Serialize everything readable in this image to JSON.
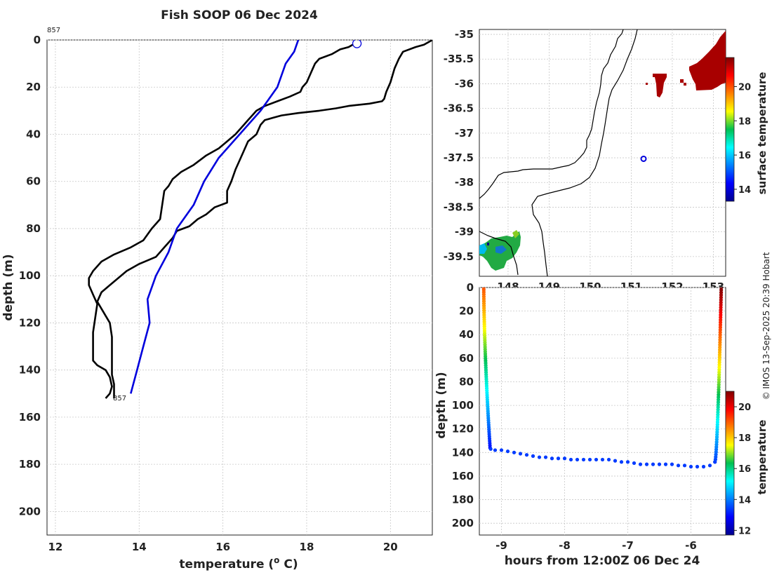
{
  "title": "Fish SOOP 06 Dec 2024",
  "credit": "© IMOS 13-Sep-2025 20:39 Hobart",
  "chart_data": [
    {
      "type": "line",
      "id": "profile",
      "xlabel": "temperature (",
      "xlabel_sup": "o",
      "xlabel_end": " C)",
      "ylabel": "depth (m)",
      "xlim": [
        11.8,
        21.0
      ],
      "ylim": [
        210,
        0
      ],
      "xticks": [
        12,
        14,
        16,
        18,
        20
      ],
      "yticks": [
        0,
        20,
        40,
        60,
        80,
        100,
        120,
        140,
        160,
        180,
        200
      ],
      "profile_id_top": "857",
      "profile_id_bottom": "857",
      "series": [
        {
          "color": "#000000",
          "points": [
            [
              21.0,
              0
            ],
            [
              20.8,
              2
            ],
            [
              20.6,
              3
            ],
            [
              20.3,
              5
            ],
            [
              20.2,
              8
            ],
            [
              20.1,
              12
            ],
            [
              20.0,
              18
            ],
            [
              19.9,
              22
            ],
            [
              19.85,
              25
            ],
            [
              19.8,
              26
            ],
            [
              19.5,
              27
            ],
            [
              19.0,
              28
            ],
            [
              18.7,
              29
            ],
            [
              18.3,
              30
            ],
            [
              17.8,
              31
            ],
            [
              17.4,
              32
            ],
            [
              17.2,
              33
            ],
            [
              17.0,
              34
            ],
            [
              16.9,
              36
            ],
            [
              16.8,
              40
            ],
            [
              16.6,
              43
            ],
            [
              16.5,
              47
            ],
            [
              16.4,
              51
            ],
            [
              16.3,
              55
            ],
            [
              16.2,
              60
            ],
            [
              16.1,
              64
            ],
            [
              16.1,
              69
            ],
            [
              15.8,
              71
            ],
            [
              15.6,
              74
            ],
            [
              15.4,
              76
            ],
            [
              15.2,
              79
            ],
            [
              14.9,
              81
            ],
            [
              14.8,
              84
            ],
            [
              14.6,
              88
            ],
            [
              14.4,
              92
            ],
            [
              14.0,
              95
            ],
            [
              13.7,
              98
            ],
            [
              13.5,
              101
            ],
            [
              13.3,
              104
            ],
            [
              13.1,
              107
            ],
            [
              13.0,
              111
            ],
            [
              13.1,
              114
            ],
            [
              13.2,
              117
            ],
            [
              13.3,
              120
            ],
            [
              13.35,
              126
            ],
            [
              13.35,
              134
            ],
            [
              13.35,
              142
            ],
            [
              13.4,
              146
            ],
            [
              13.4,
              150
            ],
            [
              13.4,
              152
            ]
          ]
        },
        {
          "color": "#000000",
          "points": [
            [
              19.1,
              2
            ],
            [
              19.0,
              3
            ],
            [
              18.8,
              4
            ],
            [
              18.6,
              6
            ],
            [
              18.3,
              8
            ],
            [
              18.2,
              10
            ],
            [
              18.15,
              12
            ],
            [
              18.1,
              14
            ],
            [
              18.0,
              18
            ],
            [
              17.9,
              20
            ],
            [
              17.85,
              22
            ],
            [
              17.6,
              24
            ],
            [
              17.3,
              26
            ],
            [
              17.0,
              28
            ],
            [
              16.8,
              30
            ],
            [
              16.7,
              32
            ],
            [
              16.6,
              34
            ],
            [
              16.5,
              36
            ],
            [
              16.3,
              40
            ],
            [
              16.1,
              43
            ],
            [
              15.9,
              46
            ],
            [
              15.6,
              49
            ],
            [
              15.3,
              53
            ],
            [
              15.0,
              56
            ],
            [
              14.8,
              59
            ],
            [
              14.7,
              62
            ],
            [
              14.6,
              64
            ],
            [
              14.55,
              70
            ],
            [
              14.5,
              76
            ],
            [
              14.3,
              80
            ],
            [
              14.1,
              85
            ],
            [
              13.8,
              88
            ],
            [
              13.4,
              91
            ],
            [
              13.1,
              94
            ],
            [
              12.9,
              98
            ],
            [
              12.8,
              101
            ],
            [
              12.8,
              104
            ],
            [
              12.9,
              108
            ],
            [
              13.0,
              112
            ],
            [
              12.95,
              118
            ],
            [
              12.9,
              124
            ],
            [
              12.9,
              130
            ],
            [
              12.9,
              136
            ],
            [
              13.0,
              138
            ],
            [
              13.2,
              140
            ],
            [
              13.3,
              143
            ],
            [
              13.35,
              147
            ],
            [
              13.3,
              150
            ],
            [
              13.2,
              152
            ]
          ]
        },
        {
          "color": "#0000dd",
          "points": [
            [
              17.8,
              0
            ],
            [
              17.7,
              5
            ],
            [
              17.5,
              10
            ],
            [
              17.3,
              20
            ],
            [
              16.9,
              30
            ],
            [
              16.4,
              40
            ],
            [
              15.9,
              50
            ],
            [
              15.55,
              60
            ],
            [
              15.3,
              70
            ],
            [
              14.9,
              80
            ],
            [
              14.7,
              90
            ],
            [
              14.4,
              100
            ],
            [
              14.2,
              110
            ],
            [
              14.25,
              120
            ],
            [
              14.1,
              130
            ],
            [
              13.95,
              140
            ],
            [
              13.8,
              150
            ]
          ]
        }
      ],
      "marker": {
        "x": 19.2,
        "y": 1.5,
        "color": "#0000dd"
      }
    },
    {
      "type": "heatmap",
      "id": "map",
      "colorbar_label": "surface temperature",
      "yticks": [
        -35,
        -35.5,
        -36,
        -36.5,
        -37,
        -37.5,
        -38,
        -38.5,
        -39,
        -39.5
      ],
      "xticks": [
        148,
        149,
        150,
        151,
        152,
        153
      ],
      "xlim": [
        147.3,
        153.3
      ],
      "ylim": [
        -39.9,
        -34.9
      ],
      "colorbar_ticks": [
        14,
        16,
        18,
        20
      ],
      "colorbar_range": [
        13.3,
        21.7
      ],
      "position_marker": {
        "lon": 151.3,
        "lat": -37.52,
        "color": "#0000dd"
      }
    },
    {
      "type": "scatter",
      "id": "section",
      "xlabel": "hours from 12:00Z 06 Dec 24",
      "ylabel": "depth (m)",
      "colorbar_label": "temperature",
      "xlim": [
        -9.35,
        -5.45
      ],
      "ylim": [
        210,
        0
      ],
      "xticks": [
        -9,
        -8,
        -7,
        -6
      ],
      "yticks": [
        0,
        20,
        40,
        60,
        80,
        100,
        120,
        140,
        160,
        180,
        200
      ],
      "colorbar_ticks": [
        12,
        14,
        16,
        18,
        20
      ],
      "colorbar_range": [
        11.7,
        21.0
      ],
      "descent": {
        "x_start": -9.28,
        "x_end": -9.18,
        "depth_end": 136,
        "temp_top": 19.1,
        "temp_bottom": 13.0
      },
      "bottom_track": [
        [
          -9.17,
          137
        ],
        [
          -9.1,
          138
        ],
        [
          -9.0,
          138
        ],
        [
          -8.9,
          139
        ],
        [
          -8.8,
          140
        ],
        [
          -8.7,
          141
        ],
        [
          -8.6,
          142
        ],
        [
          -8.5,
          143
        ],
        [
          -8.4,
          144
        ],
        [
          -8.3,
          144
        ],
        [
          -8.2,
          145
        ],
        [
          -8.1,
          145
        ],
        [
          -8.0,
          145
        ],
        [
          -7.9,
          146
        ],
        [
          -7.8,
          146
        ],
        [
          -7.7,
          146
        ],
        [
          -7.6,
          146
        ],
        [
          -7.5,
          146
        ],
        [
          -7.4,
          146
        ],
        [
          -7.3,
          146
        ],
        [
          -7.2,
          147
        ],
        [
          -7.1,
          148
        ],
        [
          -7.0,
          148
        ],
        [
          -6.9,
          149
        ],
        [
          -6.8,
          150
        ],
        [
          -6.7,
          150
        ],
        [
          -6.6,
          150
        ],
        [
          -6.5,
          150
        ],
        [
          -6.4,
          150
        ],
        [
          -6.3,
          150
        ],
        [
          -6.2,
          151
        ],
        [
          -6.1,
          151
        ],
        [
          -6.0,
          152
        ],
        [
          -5.9,
          152
        ],
        [
          -5.8,
          152
        ],
        [
          -5.7,
          151
        ],
        [
          -5.62,
          148
        ]
      ],
      "bottom_temp": 13.4,
      "ascent": {
        "x_start": -5.62,
        "x_end": -5.52,
        "depth_start": 148,
        "temp_bottom": 13.4,
        "temp_top": 21.0
      }
    }
  ]
}
